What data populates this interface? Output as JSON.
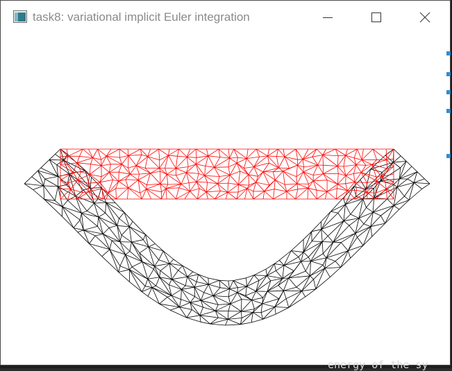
{
  "window": {
    "title": "task8: variational implicit Euler integration",
    "app_icon": "app-window-icon",
    "controls": {
      "minimize": "minimize-icon",
      "maximize": "maximize-icon",
      "close": "close-icon"
    }
  },
  "scene": {
    "rest_mesh_color": "#ff0000",
    "deformed_mesh_color": "#000000",
    "background_color": "#ffffff"
  },
  "background_editor": {
    "partial_text": "energy of the sy"
  },
  "colors": {
    "title_text": "#8a8a8a",
    "side_mark_blue": "#2c8fd6"
  }
}
